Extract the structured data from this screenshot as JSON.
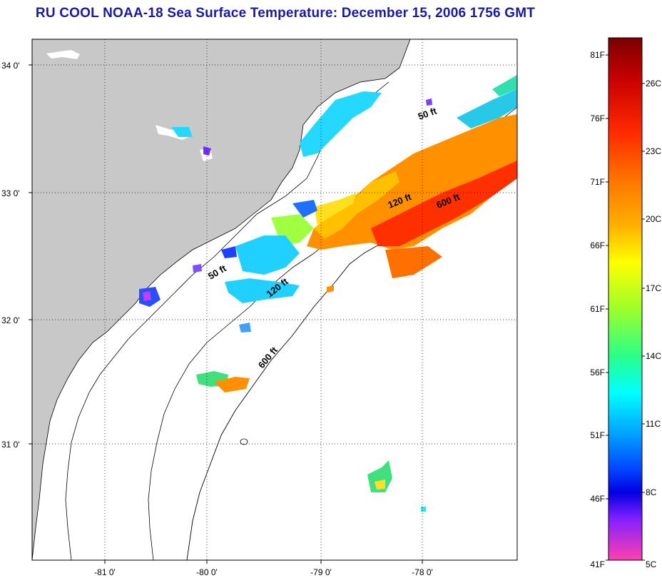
{
  "title": "RU COOL  NOAA-18  Sea Surface Temperature:  December 15, 2006 1756 GMT",
  "map": {
    "lat_labels": [
      "34 0'",
      "33 0'",
      "32 0'",
      "31 0'"
    ],
    "lon_labels": [
      "-81 0'",
      "-80 0'",
      "-79 0'",
      "-78 0'"
    ],
    "contours": [
      "50 ft",
      "120 ft",
      "600 ft",
      "50 ft",
      "120 ft",
      "600 ft"
    ],
    "land_color": "#c8c8c8",
    "ocean_color": "#ffffff"
  },
  "colorbar": {
    "fahrenheit_labels": [
      "81F",
      "76F",
      "71F",
      "66F",
      "61F",
      "56F",
      "51F",
      "46F",
      "41F"
    ],
    "celsius_labels": [
      "26C",
      "23C",
      "20C",
      "17C",
      "14C",
      "11C",
      "8C",
      "5C"
    ]
  }
}
